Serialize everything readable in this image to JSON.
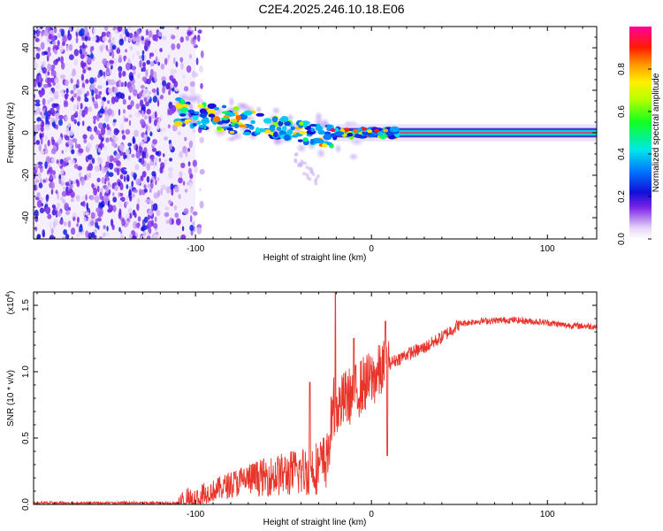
{
  "title": "C2E4.2025.246.10.18.E06",
  "chart_data": [
    {
      "type": "heatmap",
      "name": "spectrogram",
      "xlabel": "Height of straight line (km)",
      "ylabel": "Frequency (Hz)",
      "xlim": [
        -192,
        128
      ],
      "ylim": [
        -50,
        50
      ],
      "xticks": [
        -100,
        0,
        100
      ],
      "yticks": [
        -40,
        -20,
        0,
        20,
        40
      ],
      "xtick_labels": [
        "-100",
        "0",
        "100"
      ],
      "ytick_labels": [
        "-40",
        "-20",
        "0",
        "20",
        "40"
      ],
      "colorbar": {
        "label": "Normalized spectral amplitude",
        "range": [
          0,
          1
        ],
        "ticks": [
          0.0,
          0.2,
          0.4,
          0.6,
          0.8
        ],
        "tick_labels": [
          "0.0",
          "0.2",
          "0.4",
          "0.6",
          "0.8"
        ]
      },
      "features": [
        {
          "label": "broadband noise",
          "x_range": [
            -192,
            -100
          ],
          "y_range": [
            -50,
            50
          ],
          "amplitude": 0.15
        },
        {
          "label": "chirp signal",
          "x_start": -110,
          "x_end": -20,
          "freq_start": 10,
          "freq_end": -2,
          "amplitude": 0.35
        },
        {
          "label": "steady tone",
          "x_start": -20,
          "x_end": 128,
          "freq": 0,
          "amplitude": 1.0
        }
      ]
    },
    {
      "type": "line",
      "name": "snr",
      "xlabel": "Height of straight line (km)",
      "ylabel": "SNR (10 * v/v)",
      "multiplier_label": "(x10",
      "multiplier_exp": "4",
      "multiplier_close": ")",
      "xlim": [
        -192,
        128
      ],
      "ylim": [
        0,
        1.6
      ],
      "xticks": [
        -100,
        0,
        100
      ],
      "yticks": [
        0.0,
        0.5,
        1.0,
        1.5
      ],
      "xtick_labels": [
        "-100",
        "0",
        "100"
      ],
      "ytick_labels": [
        "0.0",
        "0.5",
        "1.0",
        "1.5"
      ],
      "color": "#e8352b",
      "series": [
        {
          "name": "SNR",
          "x": [
            -192,
            -150,
            -110,
            -100,
            -90,
            -80,
            -70,
            -60,
            -50,
            -40,
            -30,
            -25,
            -22,
            -20,
            -15,
            -10,
            -5,
            0,
            5,
            10,
            20,
            30,
            40,
            50,
            60,
            80,
            100,
            110,
            128
          ],
          "y": [
            0.01,
            0.01,
            0.01,
            0.03,
            0.07,
            0.11,
            0.14,
            0.15,
            0.16,
            0.17,
            0.2,
            0.25,
            0.62,
            0.7,
            0.8,
            0.83,
            0.9,
            0.94,
            1.0,
            1.06,
            1.13,
            1.18,
            1.26,
            1.36,
            1.38,
            1.39,
            1.37,
            1.35,
            1.34
          ],
          "peaks": [
            {
              "x": -20.5,
              "y": 1.6
            },
            {
              "x": -35,
              "y": 0.92
            },
            {
              "x": -10,
              "y": 1.25
            },
            {
              "x": 8,
              "y": 1.38
            },
            {
              "x": 9,
              "y": 0.37
            }
          ]
        }
      ]
    }
  ]
}
